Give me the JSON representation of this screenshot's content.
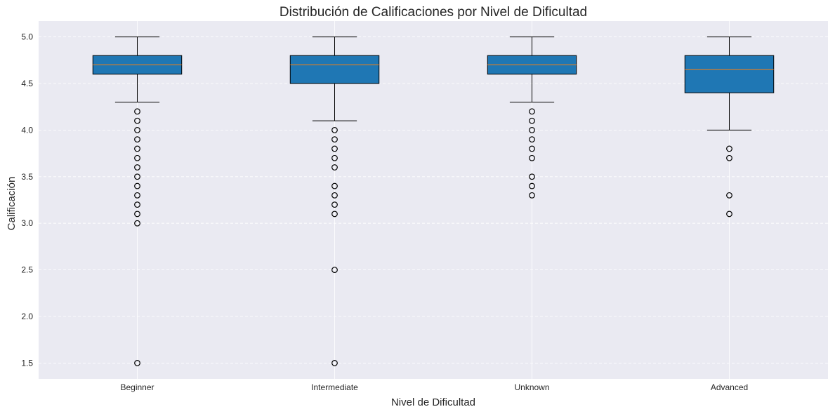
{
  "chart_data": {
    "type": "box",
    "title": "Distribución de Calificaciones por Nivel de Dificultad",
    "xlabel": "Nivel de Dificultad",
    "ylabel": "Calificación",
    "ylim": [
      1.33,
      5.17
    ],
    "yticks": [
      "1.5",
      "2.0",
      "2.5",
      "3.0",
      "3.5",
      "4.0",
      "4.5",
      "5.0"
    ],
    "grid": true,
    "categories": [
      "Beginner",
      "Intermediate",
      "Unknown",
      "Advanced"
    ],
    "boxes": [
      {
        "category": "Beginner",
        "whisker_low": 4.3,
        "q1": 4.6,
        "median": 4.7,
        "q3": 4.8,
        "whisker_high": 5.0,
        "outliers": [
          4.2,
          4.1,
          4.0,
          3.9,
          3.8,
          3.7,
          3.6,
          3.5,
          3.4,
          3.3,
          3.2,
          3.1,
          3.0,
          1.5
        ]
      },
      {
        "category": "Intermediate",
        "whisker_low": 4.1,
        "q1": 4.5,
        "median": 4.7,
        "q3": 4.8,
        "whisker_high": 5.0,
        "outliers": [
          4.0,
          3.9,
          3.8,
          3.7,
          3.6,
          3.4,
          3.3,
          3.2,
          3.1,
          2.5,
          1.5
        ]
      },
      {
        "category": "Unknown",
        "whisker_low": 4.3,
        "q1": 4.6,
        "median": 4.7,
        "q3": 4.8,
        "whisker_high": 5.0,
        "outliers": [
          4.2,
          4.1,
          4.0,
          3.9,
          3.8,
          3.7,
          3.5,
          3.4,
          3.3
        ]
      },
      {
        "category": "Advanced",
        "whisker_low": 4.0,
        "q1": 4.4,
        "median": 4.65,
        "q3": 4.8,
        "whisker_high": 5.0,
        "outliers": [
          3.8,
          3.7,
          3.3,
          3.1
        ]
      }
    ],
    "colors": {
      "box_fill": "#1f77b4",
      "median": "#ff7f0e",
      "plot_background": "#eaeaf2",
      "grid": "#ffffff"
    }
  }
}
